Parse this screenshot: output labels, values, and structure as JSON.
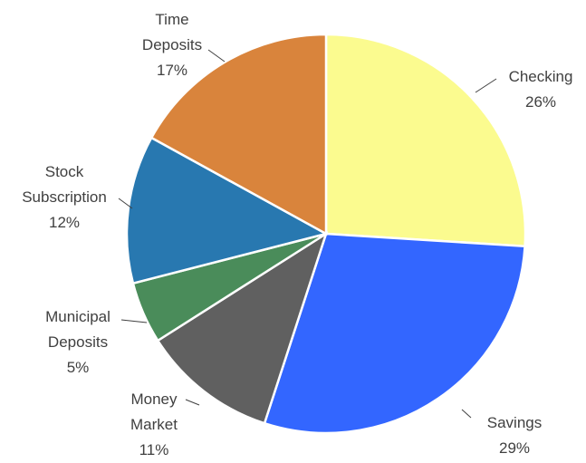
{
  "chart_data": {
    "type": "pie",
    "categories": [
      "Checking",
      "Savings",
      "Money Market",
      "Municipal Deposits",
      "Stock Subscription",
      "Time Deposits"
    ],
    "values": [
      26,
      29,
      11,
      5,
      12,
      17
    ],
    "value_labels": [
      "26%",
      "29%",
      "11%",
      "5%",
      "12%",
      "17%"
    ],
    "colors": [
      "#fbfb8f",
      "#3366ff",
      "#606060",
      "#4a8c5a",
      "#2878b0",
      "#d9843c"
    ]
  }
}
